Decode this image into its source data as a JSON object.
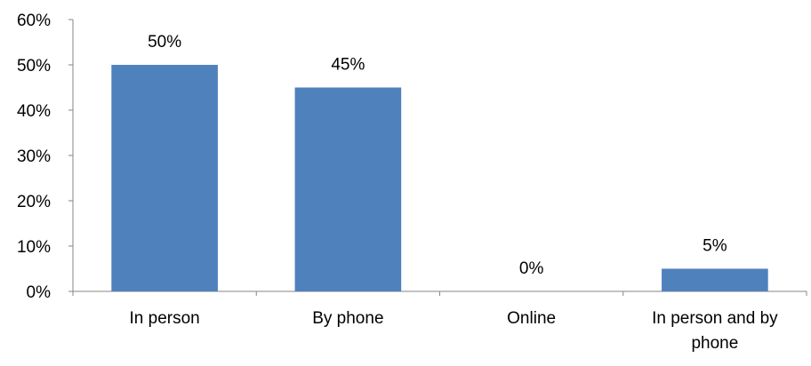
{
  "chart_data": {
    "type": "bar",
    "categories": [
      "In person",
      "By phone",
      "Online",
      "In person and by phone"
    ],
    "category_label_lines": [
      [
        "In person"
      ],
      [
        "By phone"
      ],
      [
        "Online"
      ],
      [
        "In person and by",
        "phone"
      ]
    ],
    "values": [
      50,
      45,
      0,
      5
    ],
    "data_labels": [
      "50%",
      "45%",
      "0%",
      "5%"
    ],
    "ylim": [
      0,
      60
    ],
    "y_ticks": [
      0,
      10,
      20,
      30,
      40,
      50,
      60
    ],
    "y_tick_labels": [
      "0%",
      "10%",
      "20%",
      "30%",
      "40%",
      "50%",
      "60%"
    ],
    "title": "",
    "xlabel": "",
    "ylabel": "",
    "grid": false,
    "legend": "none",
    "bar_color": "#4F81BD",
    "axis_color": "#868686"
  }
}
